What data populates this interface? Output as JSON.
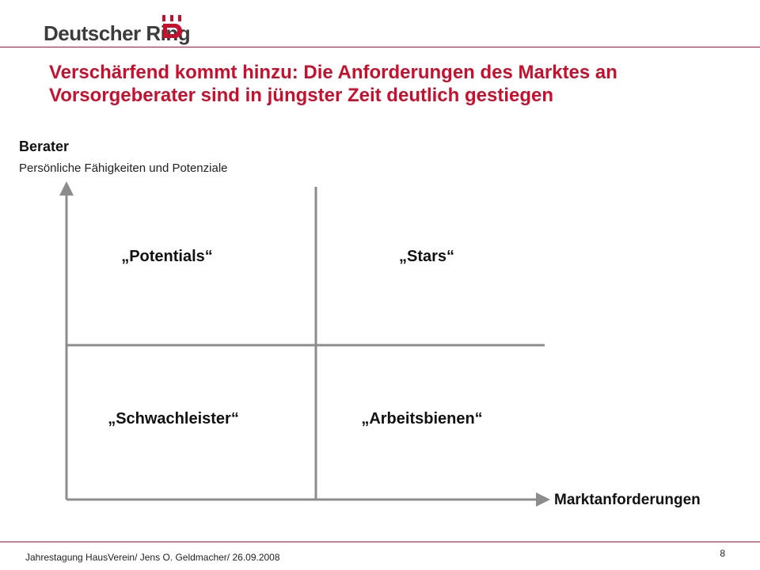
{
  "header": {
    "logo_text": "Deutscher Ring",
    "logo_icon": "deutscher-ring-emblem-icon"
  },
  "slide": {
    "title": "Verschärfend kommt hinzu: Die Anforderungen des Marktes an Vorsorgeberater sind in jüngster Zeit deutlich gestiegen"
  },
  "matrix": {
    "y_axis_title": "Berater",
    "y_axis_subtitle": "Persönliche Fähigkeiten und Potenziale",
    "x_axis_title": "Marktanforderungen",
    "quadrants": {
      "top_left": "„Potentials“",
      "top_right": "„Stars“",
      "bottom_left": "„Schwachleister“",
      "bottom_right": "„Arbeitsbienen“"
    }
  },
  "footer": {
    "text": "Jahrestagung HausVerein/ Jens O. Geldmacher/ 26.09.2008",
    "page_number": "8"
  },
  "colors": {
    "brand_red": "#c8102e",
    "axis_gray": "#8c8c8c"
  }
}
